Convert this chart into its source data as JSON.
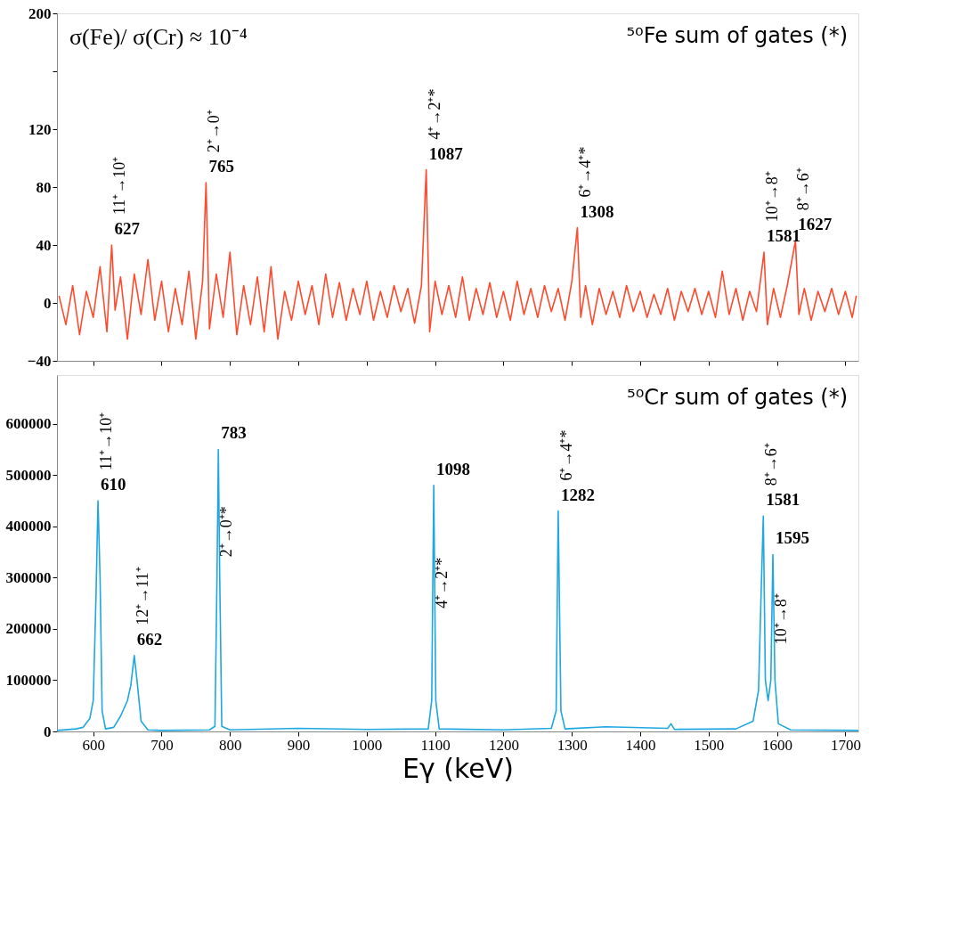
{
  "chart_data": [
    {
      "type": "line",
      "xlim": [
        547,
        1719
      ],
      "xticks": [
        600,
        700,
        800,
        900,
        1000,
        1100,
        1200,
        1300,
        1400,
        1500,
        1600,
        1700
      ],
      "ylim": [
        -40,
        200
      ],
      "yticks": [
        -40,
        0,
        40,
        80,
        120,
        {
          "value": 160,
          "label": null
        },
        200
      ],
      "tick_labels": "y",
      "grid": false,
      "x": [
        550,
        560,
        570,
        580,
        590,
        600,
        610,
        620,
        627,
        632,
        640,
        650,
        660,
        670,
        680,
        690,
        700,
        710,
        720,
        730,
        740,
        750,
        760,
        765,
        770,
        780,
        790,
        800,
        810,
        820,
        830,
        840,
        850,
        860,
        870,
        880,
        890,
        900,
        910,
        920,
        930,
        940,
        950,
        960,
        970,
        980,
        990,
        1000,
        1010,
        1020,
        1030,
        1040,
        1050,
        1060,
        1070,
        1080,
        1087,
        1092,
        1100,
        1110,
        1120,
        1130,
        1140,
        1150,
        1160,
        1170,
        1180,
        1190,
        1200,
        1210,
        1220,
        1230,
        1240,
        1250,
        1260,
        1270,
        1280,
        1290,
        1300,
        1308,
        1313,
        1320,
        1330,
        1340,
        1350,
        1360,
        1370,
        1380,
        1390,
        1400,
        1410,
        1420,
        1430,
        1440,
        1450,
        1460,
        1470,
        1480,
        1490,
        1500,
        1510,
        1520,
        1530,
        1540,
        1550,
        1560,
        1570,
        1581,
        1586,
        1595,
        1605,
        1615,
        1627,
        1632,
        1640,
        1650,
        1660,
        1670,
        1680,
        1690,
        1700,
        1710,
        1716
      ],
      "series": [
        {
          "color": "#ff4a2e",
          "values": [
            5,
            -15,
            12,
            -22,
            8,
            -10,
            25,
            -20,
            40,
            -5,
            18,
            -25,
            20,
            -8,
            30,
            -12,
            15,
            -20,
            10,
            -15,
            22,
            -25,
            15,
            83,
            -18,
            20,
            -10,
            35,
            -22,
            12,
            -15,
            18,
            -20,
            25,
            -25,
            8,
            -12,
            15,
            -8,
            12,
            -15,
            20,
            -10,
            14,
            -12,
            10,
            -8,
            15,
            -12,
            8,
            -10,
            12,
            -6,
            10,
            -14,
            12,
            92,
            -20,
            15,
            -8,
            12,
            -10,
            18,
            -12,
            10,
            -8,
            14,
            -10,
            8,
            -12,
            15,
            -8,
            10,
            -10,
            12,
            -6,
            10,
            -12,
            15,
            52,
            -10,
            12,
            -15,
            10,
            -8,
            8,
            -10,
            12,
            -6,
            8,
            -10,
            6,
            -8,
            10,
            -12,
            8,
            -6,
            10,
            -8,
            8,
            -10,
            22,
            -8,
            10,
            -12,
            8,
            -6,
            35,
            -15,
            10,
            -10,
            12,
            43,
            -8,
            10,
            -12,
            8,
            -6,
            10,
            -8,
            8,
            -10,
            5
          ]
        }
      ],
      "annotations": [
        "⁵⁰Fe sum of gates (*)",
        "σ(Fe)/ σ(Cr) ≈ 10⁻⁴",
        {
          "text": "11⁺→10⁺",
          "x": 627,
          "y": 40
        },
        {
          "text": "627",
          "x": 627,
          "y": 40
        },
        {
          "text": "2⁺→0⁺",
          "x": 765,
          "y": 83
        },
        {
          "text": "765",
          "x": 765,
          "y": 83
        },
        {
          "text": "4⁺→2⁺*",
          "x": 1087,
          "y": 92
        },
        {
          "text": "1087",
          "x": 1087,
          "y": 92
        },
        {
          "text": "6⁺→4⁺*",
          "x": 1308,
          "y": 52
        },
        {
          "text": "1308",
          "x": 1308,
          "y": 52
        },
        {
          "text": "10⁺→8⁺",
          "x": 1581,
          "y": 35
        },
        {
          "text": "1581",
          "x": 1581,
          "y": 35
        },
        {
          "text": "8⁺→6⁺",
          "x": 1627,
          "y": 43
        },
        {
          "text": "1627",
          "x": 1627,
          "y": 43
        }
      ]
    },
    {
      "type": "line",
      "xlabel": "Eγ (keV)",
      "xlim": [
        547,
        1719
      ],
      "xticks": [
        600,
        700,
        800,
        900,
        1000,
        1100,
        1200,
        1300,
        1400,
        1500,
        1600,
        1700
      ],
      "ylim": [
        0,
        695000
      ],
      "yticks": [
        0,
        100000,
        200000,
        300000,
        400000,
        500000,
        600000
      ],
      "grid": false,
      "x": [
        547,
        575,
        585,
        595,
        600,
        604,
        607,
        610,
        613,
        618,
        630,
        640,
        650,
        655,
        660,
        664,
        670,
        680,
        700,
        770,
        778,
        781,
        783,
        785,
        788,
        800,
        900,
        1000,
        1090,
        1095,
        1098,
        1101,
        1106,
        1200,
        1270,
        1277,
        1280,
        1284,
        1290,
        1350,
        1440,
        1445,
        1450,
        1540,
        1565,
        1573,
        1577,
        1580,
        1583,
        1587,
        1591,
        1594,
        1597,
        1602,
        1620,
        1719
      ],
      "series": [
        {
          "color": "#1ea7e1",
          "values": [
            2000,
            5000,
            8000,
            25000,
            60000,
            260000,
            450000,
            300000,
            40000,
            5000,
            8000,
            30000,
            60000,
            90000,
            148000,
            100000,
            20000,
            3000,
            2000,
            3000,
            10000,
            300000,
            550000,
            300000,
            10000,
            3000,
            6000,
            4000,
            5000,
            60000,
            480000,
            60000,
            5000,
            3000,
            6000,
            40000,
            430000,
            40000,
            5000,
            9000,
            6000,
            15000,
            4000,
            5000,
            20000,
            80000,
            280000,
            420000,
            100000,
            60000,
            100000,
            345000,
            100000,
            15000,
            3000,
            2000
          ]
        }
      ],
      "annotations": [
        "⁵⁰Cr sum of gates (*)",
        {
          "text": "11⁺→10⁺",
          "x": 607,
          "y": 450000
        },
        {
          "text": "610",
          "x": 607,
          "y": 450000
        },
        {
          "text": "12⁺→11⁺",
          "x": 660,
          "y": 148000
        },
        {
          "text": "662",
          "x": 660,
          "y": 148000
        },
        {
          "text": "2⁺→0⁺*",
          "x": 783,
          "y": 340000
        },
        {
          "text": "783",
          "x": 783,
          "y": 550000
        },
        {
          "text": "4⁺→2⁺*",
          "x": 1098,
          "y": 240000
        },
        {
          "text": "1098",
          "x": 1098,
          "y": 480000
        },
        {
          "text": "6⁺→4⁺*",
          "x": 1280,
          "y": 430000
        },
        {
          "text": "1282",
          "x": 1280,
          "y": 430000
        },
        {
          "text": "8⁺→6⁺",
          "x": 1580,
          "y": 420000
        },
        {
          "text": "1581",
          "x": 1580,
          "y": 420000
        },
        {
          "text": "10⁺→8⁺",
          "x": 1594,
          "y": 170000
        },
        {
          "text": "1595",
          "x": 1594,
          "y": 345000
        }
      ]
    }
  ]
}
